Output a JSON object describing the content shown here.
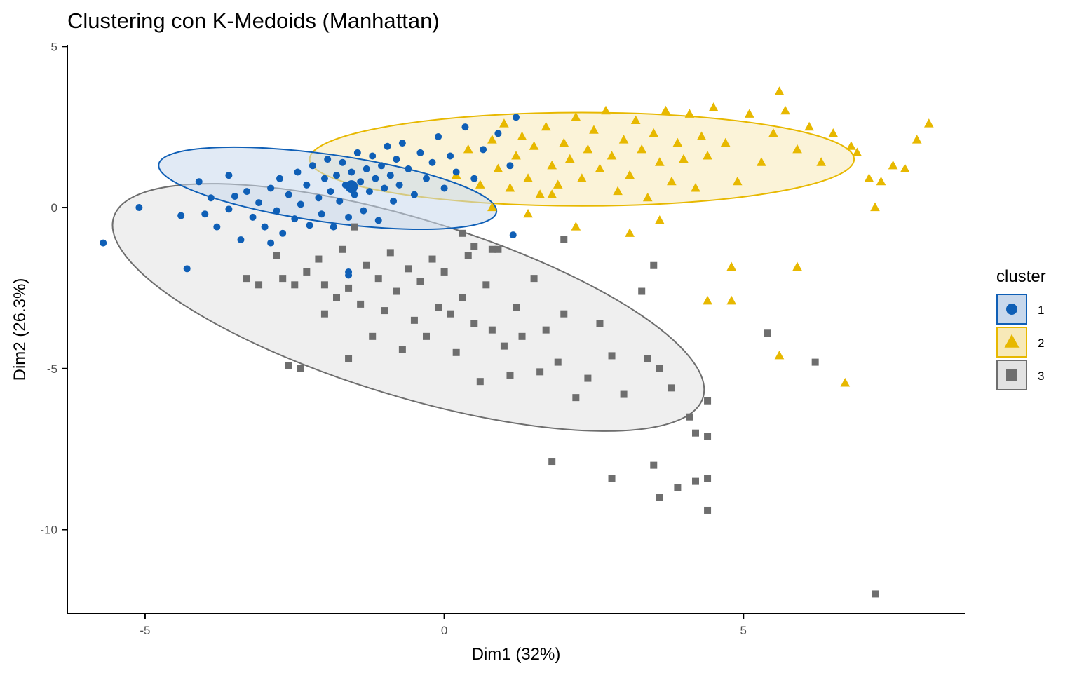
{
  "chart_data": {
    "type": "scatter",
    "title": "Clustering con K-Medoids (Manhattan)",
    "xlabel": "Dim1 (32%)",
    "ylabel": "Dim2 (26.3%)",
    "xlim": [
      -6.3,
      8.7
    ],
    "ylim": [
      -12.6,
      5.05
    ],
    "xticks": [
      -5,
      0,
      5
    ],
    "xtick_labels": [
      "-5",
      "0",
      "5"
    ],
    "yticks": [
      5,
      0,
      -5,
      -10
    ],
    "ytick_labels": [
      "5",
      "0",
      "-5",
      "-10"
    ],
    "legend": {
      "title": "cluster",
      "position": "right",
      "labels": [
        "1",
        "2",
        "3"
      ]
    },
    "series": [
      {
        "name": "1",
        "shape": "circle",
        "color": "#0F5FB6",
        "fill": "#C8D8EC",
        "medoid": [
          -1.55,
          0.65
        ],
        "ellipse": {
          "center": [
            -1.95,
            0.6
          ],
          "rx": 2.85,
          "ry": 1.05,
          "angle_deg": 8
        },
        "points": [
          [
            -5.7,
            -1.1
          ],
          [
            -5.1,
            0
          ],
          [
            -4.4,
            -0.25
          ],
          [
            -4.3,
            -1.9
          ],
          [
            -4.0,
            -0.2
          ],
          [
            -3.9,
            0.3
          ],
          [
            -3.8,
            -0.6
          ],
          [
            -3.6,
            -0.05
          ],
          [
            -3.5,
            0.35
          ],
          [
            -3.4,
            -1.0
          ],
          [
            -3.3,
            0.5
          ],
          [
            -3.2,
            -0.3
          ],
          [
            -3.1,
            0.15
          ],
          [
            -3.0,
            -0.6
          ],
          [
            -2.9,
            0.6
          ],
          [
            -2.8,
            -0.1
          ],
          [
            -2.75,
            0.9
          ],
          [
            -2.7,
            -0.8
          ],
          [
            -2.6,
            0.4
          ],
          [
            -2.5,
            -0.35
          ],
          [
            -2.45,
            1.1
          ],
          [
            -2.4,
            0.1
          ],
          [
            -2.3,
            0.7
          ],
          [
            -2.25,
            -0.55
          ],
          [
            -2.2,
            1.3
          ],
          [
            -2.1,
            0.3
          ],
          [
            -2.05,
            -0.2
          ],
          [
            -2.0,
            0.9
          ],
          [
            -1.95,
            1.5
          ],
          [
            -1.9,
            0.5
          ],
          [
            -1.85,
            -0.6
          ],
          [
            -1.8,
            1.0
          ],
          [
            -1.75,
            0.2
          ],
          [
            -1.7,
            1.4
          ],
          [
            -1.65,
            0.7
          ],
          [
            -1.6,
            -0.3
          ],
          [
            -1.55,
            1.1
          ],
          [
            -1.5,
            0.4
          ],
          [
            -1.45,
            1.7
          ],
          [
            -1.4,
            0.8
          ],
          [
            -1.35,
            -0.1
          ],
          [
            -1.3,
            1.2
          ],
          [
            -1.25,
            0.5
          ],
          [
            -1.2,
            1.6
          ],
          [
            -1.15,
            0.9
          ],
          [
            -1.1,
            -0.4
          ],
          [
            -1.05,
            1.3
          ],
          [
            -1.0,
            0.6
          ],
          [
            -0.95,
            1.9
          ],
          [
            -0.9,
            1.0
          ],
          [
            -0.85,
            0.2
          ],
          [
            -0.8,
            1.5
          ],
          [
            -0.75,
            0.7
          ],
          [
            -0.7,
            2.0
          ],
          [
            -0.6,
            1.2
          ],
          [
            -0.5,
            0.4
          ],
          [
            -0.4,
            1.7
          ],
          [
            -0.3,
            0.9
          ],
          [
            -0.2,
            1.4
          ],
          [
            -0.1,
            2.2
          ],
          [
            0.0,
            0.6
          ],
          [
            0.1,
            1.6
          ],
          [
            0.2,
            1.1
          ],
          [
            0.35,
            2.5
          ],
          [
            0.5,
            0.9
          ],
          [
            0.65,
            1.8
          ],
          [
            0.9,
            2.3
          ],
          [
            1.1,
            1.3
          ],
          [
            1.2,
            2.8
          ],
          [
            -1.6,
            -2.0
          ],
          [
            -1.6,
            -2.1
          ],
          [
            1.15,
            -0.85
          ],
          [
            -2.9,
            -1.1
          ],
          [
            -3.6,
            1.0
          ],
          [
            -4.1,
            0.8
          ]
        ]
      },
      {
        "name": "2",
        "shape": "triangle",
        "color": "#E7B800",
        "fill": "#F7E9B8",
        "ellipse": {
          "center": [
            2.3,
            1.5
          ],
          "rx": 4.55,
          "ry": 1.45,
          "angle_deg": 0
        },
        "points": [
          [
            0.2,
            1.0
          ],
          [
            0.4,
            1.8
          ],
          [
            0.6,
            0.7
          ],
          [
            0.8,
            2.1
          ],
          [
            0.9,
            1.2
          ],
          [
            1.0,
            2.6
          ],
          [
            1.1,
            0.6
          ],
          [
            1.2,
            1.6
          ],
          [
            1.3,
            2.2
          ],
          [
            1.4,
            0.9
          ],
          [
            1.5,
            1.9
          ],
          [
            1.6,
            0.4
          ],
          [
            1.7,
            2.5
          ],
          [
            1.8,
            1.3
          ],
          [
            1.9,
            0.7
          ],
          [
            2.0,
            2.0
          ],
          [
            2.1,
            1.5
          ],
          [
            2.2,
            2.8
          ],
          [
            2.3,
            0.9
          ],
          [
            2.4,
            1.8
          ],
          [
            2.5,
            2.4
          ],
          [
            2.6,
            1.2
          ],
          [
            2.7,
            3.0
          ],
          [
            2.8,
            1.6
          ],
          [
            2.9,
            0.5
          ],
          [
            3.0,
            2.1
          ],
          [
            3.1,
            1.0
          ],
          [
            3.2,
            2.7
          ],
          [
            3.3,
            1.8
          ],
          [
            3.4,
            0.3
          ],
          [
            3.5,
            2.3
          ],
          [
            3.6,
            1.4
          ],
          [
            3.7,
            3.0
          ],
          [
            3.8,
            0.8
          ],
          [
            3.9,
            2.0
          ],
          [
            4.0,
            1.5
          ],
          [
            4.1,
            2.9
          ],
          [
            4.2,
            0.6
          ],
          [
            4.3,
            2.2
          ],
          [
            4.4,
            1.6
          ],
          [
            4.5,
            3.1
          ],
          [
            4.7,
            2.0
          ],
          [
            4.9,
            0.8
          ],
          [
            5.1,
            2.9
          ],
          [
            5.3,
            1.4
          ],
          [
            5.5,
            2.3
          ],
          [
            5.7,
            3.0
          ],
          [
            5.9,
            1.8
          ],
          [
            6.1,
            2.5
          ],
          [
            6.3,
            1.4
          ],
          [
            6.5,
            2.3
          ],
          [
            6.8,
            1.9
          ],
          [
            7.1,
            0.9
          ],
          [
            7.3,
            0.8
          ],
          [
            7.5,
            1.3
          ],
          [
            7.7,
            1.2
          ],
          [
            7.9,
            2.1
          ],
          [
            8.1,
            2.6
          ],
          [
            5.6,
            3.6
          ],
          [
            4.8,
            -1.85
          ],
          [
            4.8,
            -2.9
          ],
          [
            4.4,
            -2.9
          ],
          [
            5.9,
            -1.85
          ],
          [
            5.6,
            -4.6
          ],
          [
            6.7,
            -5.45
          ],
          [
            7.2,
            0
          ],
          [
            3.1,
            -0.8
          ],
          [
            2.2,
            -0.6
          ],
          [
            1.8,
            0.4
          ],
          [
            0.8,
            0.0
          ],
          [
            1.4,
            -0.2
          ],
          [
            6.9,
            1.7
          ],
          [
            3.6,
            -0.4
          ]
        ]
      },
      {
        "name": "3",
        "shape": "square",
        "color": "#6E6E6E",
        "fill": "#E2E2E2",
        "ellipse": {
          "center": [
            -0.6,
            -3.1
          ],
          "rx": 5.15,
          "ry": 2.75,
          "angle_deg": 17
        },
        "points": [
          [
            -2.4,
            -5.0
          ],
          [
            -3.3,
            -2.2
          ],
          [
            -3.1,
            -2.4
          ],
          [
            -2.8,
            -1.5
          ],
          [
            -2.7,
            -2.2
          ],
          [
            -2.5,
            -2.4
          ],
          [
            -2.3,
            -2.0
          ],
          [
            -2.1,
            -1.6
          ],
          [
            -2.0,
            -2.4
          ],
          [
            -2.0,
            -3.3
          ],
          [
            -1.8,
            -2.8
          ],
          [
            -1.7,
            -1.3
          ],
          [
            -1.6,
            -2.5
          ],
          [
            -1.5,
            -0.6
          ],
          [
            -1.4,
            -3.0
          ],
          [
            -1.3,
            -1.8
          ],
          [
            -1.2,
            -4.0
          ],
          [
            -1.1,
            -2.2
          ],
          [
            -1.0,
            -3.2
          ],
          [
            -0.9,
            -1.4
          ],
          [
            -0.8,
            -2.6
          ],
          [
            -0.7,
            -4.4
          ],
          [
            -0.6,
            -1.9
          ],
          [
            -0.5,
            -3.5
          ],
          [
            -0.4,
            -2.3
          ],
          [
            -0.3,
            -4.0
          ],
          [
            -0.2,
            -1.6
          ],
          [
            -0.1,
            -3.1
          ],
          [
            0.0,
            -2.0
          ],
          [
            0.1,
            -3.3
          ],
          [
            0.2,
            -4.5
          ],
          [
            0.3,
            -2.8
          ],
          [
            0.4,
            -1.5
          ],
          [
            0.5,
            -3.6
          ],
          [
            0.6,
            -5.4
          ],
          [
            0.7,
            -2.4
          ],
          [
            0.8,
            -3.8
          ],
          [
            0.9,
            -1.3
          ],
          [
            1.0,
            -4.3
          ],
          [
            1.1,
            -5.2
          ],
          [
            1.2,
            -3.1
          ],
          [
            1.3,
            -4.0
          ],
          [
            1.5,
            -2.2
          ],
          [
            1.6,
            -5.1
          ],
          [
            1.7,
            -3.8
          ],
          [
            1.9,
            -4.8
          ],
          [
            2.0,
            -3.3
          ],
          [
            2.2,
            -5.9
          ],
          [
            2.4,
            -5.3
          ],
          [
            2.6,
            -3.6
          ],
          [
            2.8,
            -4.6
          ],
          [
            3.0,
            -5.8
          ],
          [
            3.3,
            -2.6
          ],
          [
            3.4,
            -4.7
          ],
          [
            3.6,
            -5.0
          ],
          [
            3.8,
            -5.6
          ],
          [
            4.1,
            -6.5
          ],
          [
            4.2,
            -7.0
          ],
          [
            4.4,
            -6.0
          ],
          [
            4.4,
            -7.1
          ],
          [
            3.5,
            -1.8
          ],
          [
            3.5,
            -8.0
          ],
          [
            3.6,
            -9.0
          ],
          [
            3.9,
            -8.7
          ],
          [
            4.2,
            -8.5
          ],
          [
            4.4,
            -8.4
          ],
          [
            4.4,
            -9.4
          ],
          [
            2.8,
            -8.4
          ],
          [
            1.8,
            -7.9
          ],
          [
            5.4,
            -3.9
          ],
          [
            6.2,
            -4.8
          ],
          [
            7.2,
            -12.0
          ],
          [
            -2.6,
            -4.9
          ],
          [
            -1.6,
            -4.7
          ],
          [
            0.3,
            -0.8
          ],
          [
            0.5,
            -1.2
          ],
          [
            0.8,
            -1.3
          ],
          [
            2.0,
            -1.0
          ]
        ]
      }
    ]
  }
}
